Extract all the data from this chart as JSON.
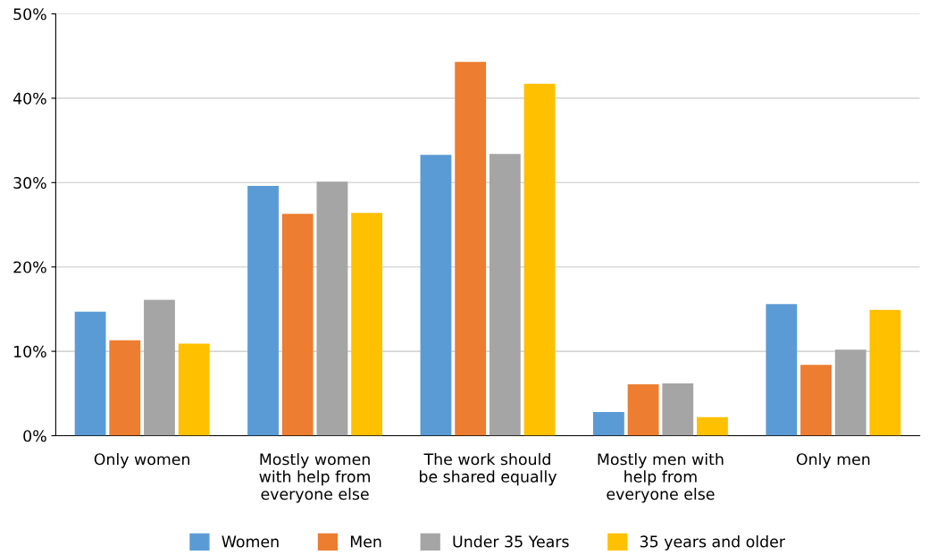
{
  "chart_data": {
    "type": "bar",
    "categories": [
      "Only women",
      "Mostly women\nwith help from\neveryone else",
      "The work should\nbe shared equally",
      "Mostly men with\nhelp from\neveryone else",
      "Only men"
    ],
    "series": [
      {
        "name": "Women",
        "color": "#5b9bd5",
        "values": [
          14.7,
          29.6,
          33.3,
          2.8,
          15.6
        ]
      },
      {
        "name": "Men",
        "color": "#ed7d31",
        "values": [
          11.3,
          26.3,
          44.3,
          6.1,
          8.4
        ]
      },
      {
        "name": "Under 35 Years",
        "color": "#a5a5a5",
        "values": [
          16.1,
          30.1,
          33.4,
          6.2,
          10.2
        ]
      },
      {
        "name": "35 years and older",
        "color": "#ffc000",
        "values": [
          10.9,
          26.4,
          41.7,
          2.2,
          14.9
        ]
      }
    ],
    "ylim": [
      0,
      50
    ],
    "yticks": [
      {
        "value": 0,
        "label": "0%"
      },
      {
        "value": 10,
        "label": "10%"
      },
      {
        "value": 20,
        "label": "20%"
      },
      {
        "value": 30,
        "label": "30%"
      },
      {
        "value": 40,
        "label": "40%"
      },
      {
        "value": 50,
        "label": "50%"
      }
    ],
    "grid": "y",
    "legend": "bottom"
  }
}
